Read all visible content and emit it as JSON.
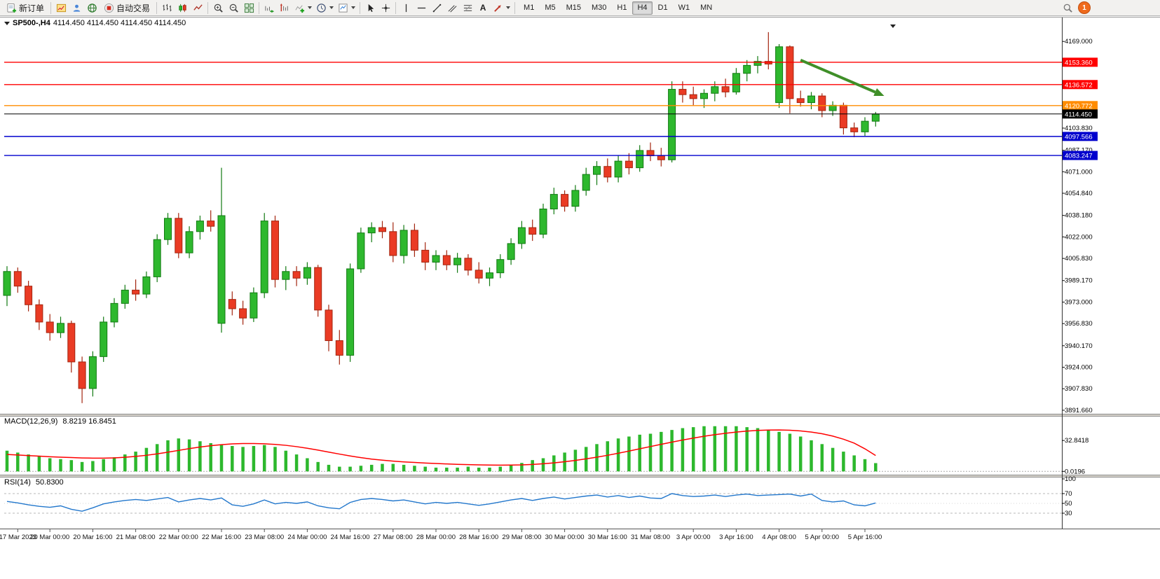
{
  "toolbar": {
    "new_order_label": "新订单",
    "auto_trading_label": "自动交易",
    "text_tool_glyph": "A",
    "timeframes": [
      "M1",
      "M5",
      "M15",
      "M30",
      "H1",
      "H4",
      "D1",
      "W1",
      "MN"
    ],
    "active_timeframe": "H4",
    "notification_count": "1"
  },
  "chart": {
    "symbol_title": "SP500-,H4",
    "ohlc_text": "4114.450 4114.450 4114.450 4114.450"
  },
  "chart_data": [
    {
      "type": "candlestick",
      "name": "SP500- H4 main window",
      "ylim": [
        3889,
        4187
      ],
      "y_axis_labels": [
        "4169.000",
        "4103.830",
        "4087.170",
        "4071.000",
        "4054.840",
        "4038.180",
        "4022.000",
        "4005.830",
        "3989.170",
        "3973.000",
        "3956.830",
        "3940.170",
        "3924.000",
        "3907.830",
        "3891.660"
      ],
      "hlines": [
        {
          "price": 4153.36,
          "color": "#ff0000",
          "label": "4153.360"
        },
        {
          "price": 4136.572,
          "color": "#ff0000",
          "label": "4136.572"
        },
        {
          "price": 4120.772,
          "color": "#ff8c00",
          "label": "4120.772"
        },
        {
          "price": 4114.45,
          "color": "#000000",
          "label": "4114.450"
        },
        {
          "price": 4097.566,
          "color": "#0000cd",
          "label": "4097.566"
        },
        {
          "price": 4083.247,
          "color": "#0000cd",
          "label": "4083.247"
        }
      ],
      "annotation_arrow": {
        "from_bar": 74,
        "from_price": 4155,
        "to_bar": 81.8,
        "to_price": 4128,
        "color": "#3f8f28"
      },
      "time_labels": [
        "17 Mar 2023",
        "20 Mar 00:00",
        "20 Mar 16:00",
        "21 Mar 08:00",
        "22 Mar 00:00",
        "22 Mar 16:00",
        "23 Mar 08:00",
        "24 Mar 00:00",
        "24 Mar 16:00",
        "27 Mar 08:00",
        "28 Mar 00:00",
        "28 Mar 16:00",
        "29 Mar 08:00",
        "30 Mar 00:00",
        "30 Mar 16:00",
        "31 Mar 08:00",
        "3 Apr 00:00",
        "3 Apr 16:00",
        "4 Apr 08:00",
        "5 Apr 00:00",
        "5 Apr 16:00"
      ],
      "time_label_bar_indices": [
        1,
        4,
        8,
        12,
        16,
        20,
        24,
        28,
        32,
        36,
        40,
        44,
        48,
        52,
        56,
        60,
        64,
        68,
        72,
        76,
        80
      ],
      "ohlc": [
        [
          3978,
          4000,
          3970,
          3996
        ],
        [
          3996,
          3999,
          3980,
          3985
        ],
        [
          3985,
          3989,
          3966,
          3971
        ],
        [
          3971,
          3975,
          3952,
          3958
        ],
        [
          3958,
          3964,
          3944,
          3950
        ],
        [
          3950,
          3962,
          3946,
          3957
        ],
        [
          3957,
          3959,
          3920,
          3928
        ],
        [
          3928,
          3932,
          3897,
          3908
        ],
        [
          3908,
          3936,
          3902,
          3932
        ],
        [
          3932,
          3962,
          3928,
          3958
        ],
        [
          3958,
          3976,
          3954,
          3972
        ],
        [
          3972,
          3986,
          3968,
          3982
        ],
        [
          3982,
          3990,
          3974,
          3979
        ],
        [
          3979,
          3996,
          3976,
          3992
        ],
        [
          3992,
          4024,
          3988,
          4020
        ],
        [
          4020,
          4040,
          4016,
          4036
        ],
        [
          4036,
          4040,
          4006,
          4010
        ],
        [
          4010,
          4030,
          4006,
          4026
        ],
        [
          4026,
          4038,
          4020,
          4034
        ],
        [
          4034,
          4042,
          4026,
          4030
        ],
        [
          3957,
          4074,
          3950,
          4038
        ],
        [
          3975,
          3981,
          3963,
          3968
        ],
        [
          3968,
          3974,
          3956,
          3961
        ],
        [
          3961,
          3984,
          3958,
          3980
        ],
        [
          3980,
          4040,
          3976,
          4034
        ],
        [
          4034,
          4038,
          3984,
          3990
        ],
        [
          3990,
          4000,
          3982,
          3996
        ],
        [
          3996,
          4000,
          3985,
          3991
        ],
        [
          3991,
          4003,
          3986,
          3999
        ],
        [
          3999,
          4001,
          3962,
          3967
        ],
        [
          3967,
          3971,
          3936,
          3944
        ],
        [
          3944,
          3952,
          3926,
          3933
        ],
        [
          3933,
          4002,
          3928,
          3998
        ],
        [
          3998,
          4029,
          3995,
          4025
        ],
        [
          4025,
          4033,
          4018,
          4029
        ],
        [
          4029,
          4034,
          4021,
          4026
        ],
        [
          4026,
          4033,
          4003,
          4008
        ],
        [
          4008,
          4031,
          4002,
          4027
        ],
        [
          4027,
          4032,
          4007,
          4012
        ],
        [
          4012,
          4018,
          3997,
          4003
        ],
        [
          4003,
          4012,
          3997,
          4008
        ],
        [
          4008,
          4012,
          3997,
          4001
        ],
        [
          4001,
          4010,
          3995,
          4006
        ],
        [
          4006,
          4009,
          3993,
          3997
        ],
        [
          3997,
          4003,
          3987,
          3991
        ],
        [
          3991,
          3999,
          3985,
          3995
        ],
        [
          3995,
          4009,
          3991,
          4005
        ],
        [
          4005,
          4021,
          4001,
          4017
        ],
        [
          4017,
          4034,
          4013,
          4029
        ],
        [
          4029,
          4035,
          4019,
          4024
        ],
        [
          4024,
          4047,
          4021,
          4043
        ],
        [
          4043,
          4059,
          4039,
          4054
        ],
        [
          4054,
          4057,
          4041,
          4045
        ],
        [
          4045,
          4061,
          4041,
          4057
        ],
        [
          4057,
          4074,
          4053,
          4069
        ],
        [
          4069,
          4079,
          4061,
          4075
        ],
        [
          4075,
          4081,
          4063,
          4067
        ],
        [
          4067,
          4083,
          4063,
          4079
        ],
        [
          4079,
          4085,
          4069,
          4074
        ],
        [
          4074,
          4091,
          4071,
          4087
        ],
        [
          4087,
          4093,
          4079,
          4083
        ],
        [
          4083,
          4089,
          4075,
          4080
        ],
        [
          4080,
          4139,
          4078,
          4133
        ],
        [
          4133,
          4139,
          4123,
          4129
        ],
        [
          4129,
          4135,
          4121,
          4126
        ],
        [
          4126,
          4133,
          4119,
          4130
        ],
        [
          4130,
          4139,
          4124,
          4135
        ],
        [
          4135,
          4141,
          4127,
          4131
        ],
        [
          4131,
          4149,
          4129,
          4145
        ],
        [
          4145,
          4155,
          4139,
          4151
        ],
        [
          4151,
          4158,
          4145,
          4154
        ],
        [
          4154,
          4176,
          4148,
          4152
        ],
        [
          4123,
          4167,
          4119,
          4165
        ],
        [
          4165,
          4166,
          4115,
          4126
        ],
        [
          4126,
          4132,
          4120,
          4123
        ],
        [
          4123,
          4131,
          4118,
          4128
        ],
        [
          4128,
          4130,
          4112,
          4117
        ],
        [
          4117,
          4124,
          4113,
          4121
        ],
        [
          4121,
          4123,
          4099,
          4104
        ],
        [
          4104,
          4108,
          4097,
          4101
        ],
        [
          4101,
          4112,
          4098,
          4109
        ],
        [
          4109,
          4116,
          4105,
          4114.45
        ]
      ]
    },
    {
      "type": "bar",
      "name": "MACD",
      "title": "MACD(12,26,9)",
      "values_text": "8.8219 16.8451",
      "ylim": [
        -2,
        56
      ],
      "axis_labels": [
        "32.8418",
        "0.0196"
      ],
      "histogram": [
        22,
        20,
        18,
        16,
        14,
        13,
        12,
        10,
        11,
        13,
        15,
        18,
        21,
        25,
        29,
        33,
        35,
        34,
        32,
        30,
        28,
        27,
        26,
        27,
        28,
        26,
        22,
        18,
        14,
        10,
        7,
        5,
        5,
        6,
        7,
        8,
        8,
        7,
        6,
        5,
        4,
        4,
        4,
        5,
        4,
        4,
        5,
        7,
        9,
        12,
        14,
        17,
        20,
        23,
        26,
        29,
        32,
        35,
        37,
        39,
        40,
        42,
        44,
        46,
        47,
        48,
        48,
        48,
        48,
        47,
        46,
        44,
        42,
        40,
        37,
        33,
        29,
        25,
        21,
        17,
        13,
        8.8
      ],
      "signal": [
        18,
        17.4,
        16.8,
        16.2,
        15.6,
        15.1,
        14.7,
        14.3,
        14.1,
        14.1,
        14.4,
        15,
        15.9,
        17.1,
        18.6,
        20.4,
        22.3,
        24.2,
        25.9,
        27.3,
        28.4,
        29.2,
        29.6,
        29.6,
        29.3,
        28.7,
        27.7,
        26.3,
        24.6,
        22.6,
        20.5,
        18.4,
        16.4,
        14.6,
        13.1,
        11.9,
        10.9,
        10.1,
        9.5,
        8.9,
        8.4,
        7.9,
        7.5,
        7.2,
        6.9,
        6.7,
        6.6,
        6.7,
        6.9,
        7.4,
        8.1,
        9.1,
        10.3,
        11.7,
        13.3,
        15.1,
        17.1,
        19.3,
        21.6,
        24,
        26.4,
        28.8,
        31.1,
        33.3,
        35.4,
        37.3,
        39,
        40.5,
        41.8,
        42.8,
        43.5,
        43.9,
        44,
        43.7,
        43,
        41.8,
        40,
        37.5,
        34.2,
        30,
        24,
        16.85
      ]
    },
    {
      "type": "line",
      "name": "RSI",
      "title": "RSI(14)",
      "value_text": "50.8300",
      "ylim": [
        0,
        100
      ],
      "levels": [
        70,
        30
      ],
      "mid_level": 50,
      "axis_labels": [
        "100",
        "70",
        "50",
        "30"
      ],
      "values": [
        54,
        51,
        47,
        44,
        42,
        45,
        38,
        34,
        41,
        49,
        53,
        56,
        58,
        56,
        59,
        62,
        53,
        57,
        60,
        57,
        61,
        47,
        44,
        49,
        57,
        49,
        52,
        50,
        53,
        45,
        41,
        39,
        52,
        58,
        60,
        58,
        55,
        57,
        53,
        49,
        52,
        50,
        52,
        49,
        46,
        49,
        53,
        57,
        60,
        56,
        60,
        63,
        59,
        62,
        65,
        67,
        63,
        66,
        62,
        65,
        61,
        60,
        70,
        66,
        64,
        65,
        67,
        64,
        67,
        69,
        66,
        67,
        68,
        69,
        65,
        69,
        56,
        53,
        55,
        47,
        45,
        50.83
      ]
    }
  ]
}
